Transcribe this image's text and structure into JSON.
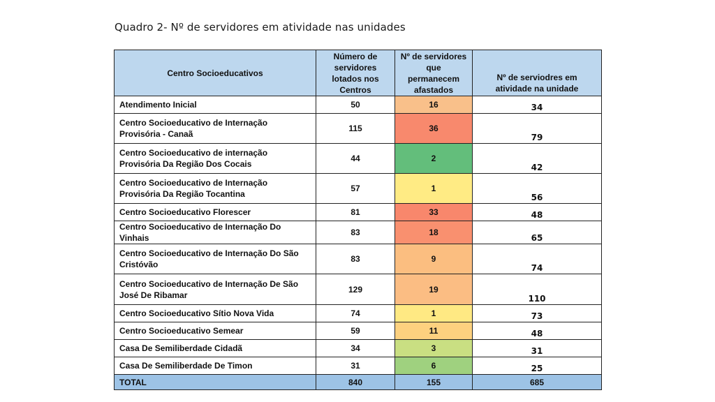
{
  "caption": "Quadro 2- Nº de servidores em atividade nas unidades",
  "headers": {
    "center": "Centro Socioeducativos",
    "assigned": "Número de servidores lotados nos Centros",
    "away": "Nº de servidores que permanecem afastados",
    "active": "Nº de serviodres em atividade na unidade"
  },
  "rows": [
    {
      "name": "Atendimento Inicial",
      "assigned": "50",
      "away": "16",
      "active": "34",
      "away_color": "#f9c08a"
    },
    {
      "name": "Centro Socioeducativo de Internação Provisória - Canaã",
      "assigned": "115",
      "away": "36",
      "active": "79",
      "away_color": "#f8896d"
    },
    {
      "name": "Centro Socioeducativo de internação Provisória Da Região Dos Cocais",
      "assigned": "44",
      "away": "2",
      "active": "42",
      "away_color": "#63be7b"
    },
    {
      "name": "Centro Socioeducativo de Internação Provisória Da Região Tocantina",
      "assigned": "57",
      "away": "1",
      "active": "56",
      "away_color": "#ffeb84"
    },
    {
      "name": "Centro Socioeducativo Florescer",
      "assigned": "81",
      "away": "33",
      "active": "48",
      "away_color": "#f8876c"
    },
    {
      "name": "Centro Socioeducativo de Internação Do Vinhais",
      "assigned": "83",
      "away": "18",
      "active": "65",
      "away_color": "#f9906f"
    },
    {
      "name": "Centro Socioeducativo de Internação Do São Cristóvão",
      "assigned": "83",
      "away": "9",
      "active": "74",
      "away_color": "#fbbe80"
    },
    {
      "name": "Centro Socioeducativo de Internação De São José De Ribamar",
      "assigned": "129",
      "away": "19",
      "active": "110",
      "away_color": "#fbbd83"
    },
    {
      "name": "Centro Socioeducativo Sítio Nova Vida",
      "assigned": "74",
      "away": "1",
      "active": "73",
      "away_color": "#ffe983"
    },
    {
      "name": "Centro Socioeducativo Semear",
      "assigned": "59",
      "away": "11",
      "active": "48",
      "away_color": "#fdd17f"
    },
    {
      "name": "Casa De Semiliberdade Cidadã",
      "assigned": "34",
      "away": "3",
      "active": "31",
      "away_color": "#c9df82"
    },
    {
      "name": "Casa De Semiliberdade De Timon",
      "assigned": "31",
      "away": "6",
      "active": "25",
      "away_color": "#9fd17f"
    }
  ],
  "total": {
    "label": "TOTAL",
    "assigned": "840",
    "away": "155",
    "active": "685"
  }
}
